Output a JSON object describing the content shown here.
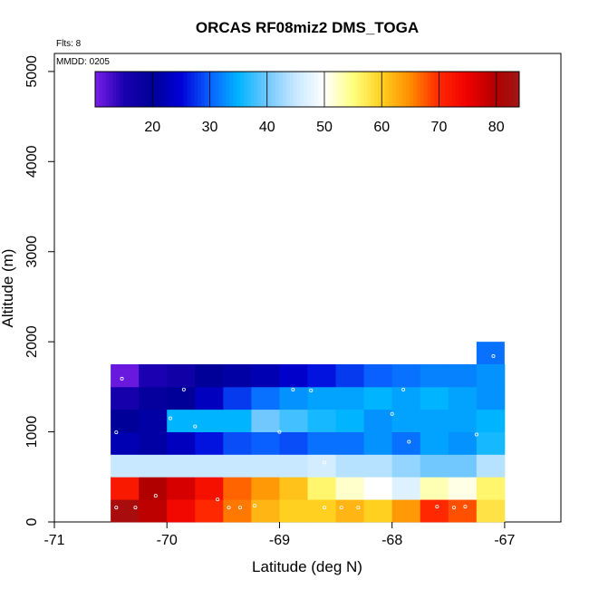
{
  "chart_data": {
    "type": "heatmap",
    "title": "ORCAS RF08miz2 DMS_TOGA",
    "xlabel": "Latitude (deg N)",
    "ylabel": "Altitude (m)",
    "xlim": [
      -71,
      -66.5
    ],
    "ylim": [
      0,
      5200
    ],
    "x_ticks": [
      -71,
      -70,
      -69,
      -68,
      -67
    ],
    "x_tick_labels": [
      "-71",
      "-70",
      "-69",
      "-68",
      "-67"
    ],
    "y_ticks": [
      0,
      1000,
      2000,
      3000,
      4000,
      5000
    ],
    "y_tick_labels": [
      "0",
      "1000",
      "2000",
      "3000",
      "4000",
      "5000"
    ],
    "flights_label": "Flts: 8",
    "date_label": "MMDD: 0205",
    "colorbar": {
      "min": 10,
      "max": 84,
      "ticks": [
        20,
        30,
        40,
        50,
        60,
        70,
        80
      ],
      "tick_labels": [
        "20",
        "30",
        "40",
        "50",
        "60",
        "70",
        "80"
      ],
      "stops": [
        {
          "v": 10,
          "c": "#7b1fe8"
        },
        {
          "v": 15,
          "c": "#1a00b0"
        },
        {
          "v": 20,
          "c": "#000098"
        },
        {
          "v": 25,
          "c": "#0000d8"
        },
        {
          "v": 30,
          "c": "#0a60ff"
        },
        {
          "v": 35,
          "c": "#00b4ff"
        },
        {
          "v": 40,
          "c": "#70c8ff"
        },
        {
          "v": 45,
          "c": "#c8e8ff"
        },
        {
          "v": 50,
          "c": "#ffffff"
        },
        {
          "v": 55,
          "c": "#ffff80"
        },
        {
          "v": 60,
          "c": "#ffd020"
        },
        {
          "v": 65,
          "c": "#ff8c00"
        },
        {
          "v": 70,
          "c": "#ff2800"
        },
        {
          "v": 75,
          "c": "#f00000"
        },
        {
          "v": 80,
          "c": "#b00000"
        },
        {
          "v": 84,
          "c": "#a01818"
        }
      ]
    },
    "cell_width_deg": 0.25,
    "cell_height_m": 250,
    "lat_start": -70.5,
    "alt_bands": [
      0,
      250,
      500,
      750,
      1000,
      1250,
      1500,
      1750
    ],
    "rows": [
      {
        "alt": 0,
        "values": [
          82,
          79,
          74,
          70,
          66,
          62,
          60,
          60,
          62,
          60,
          64,
          70,
          68,
          58
        ]
      },
      {
        "alt": 250,
        "values": [
          72,
          80,
          77,
          73,
          67,
          64,
          61,
          56,
          52,
          50,
          47,
          53,
          51,
          56
        ]
      },
      {
        "alt": 500,
        "values": [
          45,
          45,
          45,
          45,
          45,
          45,
          45,
          46,
          44,
          44,
          42,
          40,
          40,
          44
        ]
      },
      {
        "alt": 750,
        "values": [
          22,
          21,
          23,
          26,
          29,
          30,
          29,
          31,
          31,
          33,
          31,
          34,
          33,
          36
        ]
      },
      {
        "alt": 1000,
        "values": [
          20,
          21,
          35,
          35,
          35,
          40,
          38,
          36,
          35,
          33,
          34,
          34,
          34,
          35
        ]
      },
      {
        "alt": 1250,
        "values": [
          16,
          19,
          20,
          23,
          28,
          31,
          33,
          34,
          34,
          35,
          34,
          35,
          34,
          33
        ]
      },
      {
        "alt": 1500,
        "values": [
          11,
          15,
          17,
          20,
          21,
          22,
          24,
          26,
          28,
          30,
          31,
          32,
          32,
          33
        ]
      }
    ],
    "extra_cells": [
      {
        "lat": -67.25,
        "alt": 1750,
        "value": 31
      }
    ],
    "sample_points": [
      {
        "lat": -70.45,
        "alt": 160
      },
      {
        "lat": -70.28,
        "alt": 160
      },
      {
        "lat": -70.1,
        "alt": 290
      },
      {
        "lat": -69.55,
        "alt": 250
      },
      {
        "lat": -69.45,
        "alt": 160
      },
      {
        "lat": -69.35,
        "alt": 160
      },
      {
        "lat": -69.22,
        "alt": 180
      },
      {
        "lat": -68.6,
        "alt": 160
      },
      {
        "lat": -68.45,
        "alt": 160
      },
      {
        "lat": -68.3,
        "alt": 160
      },
      {
        "lat": -67.6,
        "alt": 170
      },
      {
        "lat": -67.45,
        "alt": 160
      },
      {
        "lat": -67.35,
        "alt": 170
      },
      {
        "lat": -70.55,
        "alt": 440
      },
      {
        "lat": -68.2,
        "alt": 330
      },
      {
        "lat": -68.6,
        "alt": 660
      },
      {
        "lat": -70.45,
        "alt": 995
      },
      {
        "lat": -69.97,
        "alt": 1150
      },
      {
        "lat": -69.75,
        "alt": 1060
      },
      {
        "lat": -69.0,
        "alt": 1000
      },
      {
        "lat": -68.0,
        "alt": 1200
      },
      {
        "lat": -67.85,
        "alt": 890
      },
      {
        "lat": -67.25,
        "alt": 970
      },
      {
        "lat": -70.4,
        "alt": 1590
      },
      {
        "lat": -69.85,
        "alt": 1470
      },
      {
        "lat": -68.88,
        "alt": 1470
      },
      {
        "lat": -68.72,
        "alt": 1460
      },
      {
        "lat": -67.9,
        "alt": 1470
      },
      {
        "lat": -67.1,
        "alt": 1840
      }
    ]
  }
}
